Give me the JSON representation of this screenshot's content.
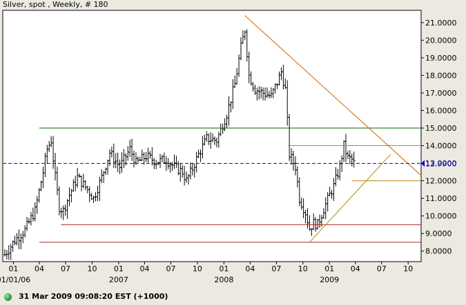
{
  "chart_data": {
    "type": "ohlc",
    "title": "Silver, spot , Weekly, # 180",
    "ylim": [
      7.4,
      21.7
    ],
    "y_ticks": [
      {
        "value": 8,
        "label": "8.0000"
      },
      {
        "value": 9,
        "label": "9.0000"
      },
      {
        "value": 10,
        "label": "10.0000"
      },
      {
        "value": 11,
        "label": "11.0000"
      },
      {
        "value": 12,
        "label": "12.0000"
      },
      {
        "value": 13,
        "label": "13.0000"
      },
      {
        "value": 14,
        "label": "14.0000"
      },
      {
        "value": 15,
        "label": "15.0000"
      },
      {
        "value": 16,
        "label": "16.0000"
      },
      {
        "value": 17,
        "label": "17.0000"
      },
      {
        "value": 18,
        "label": "18.0000"
      },
      {
        "value": 19,
        "label": "19.0000"
      },
      {
        "value": 20,
        "label": "20.0000"
      },
      {
        "value": 21,
        "label": "21.0000"
      }
    ],
    "x_start": "2005-11-25",
    "x_end": "2009-11-15",
    "x_ticks": [
      {
        "date": "2006-01-01",
        "label": "01"
      },
      {
        "date": "2006-04-01",
        "label": "04"
      },
      {
        "date": "2006-07-01",
        "label": "07"
      },
      {
        "date": "2006-10-01",
        "label": "10"
      },
      {
        "date": "2007-01-01",
        "label": "01"
      },
      {
        "date": "2007-04-01",
        "label": "04"
      },
      {
        "date": "2007-07-01",
        "label": "07"
      },
      {
        "date": "2007-10-01",
        "label": "10"
      },
      {
        "date": "2008-01-01",
        "label": "01"
      },
      {
        "date": "2008-04-01",
        "label": "04"
      },
      {
        "date": "2008-07-01",
        "label": "07"
      },
      {
        "date": "2008-10-01",
        "label": "10"
      },
      {
        "date": "2009-01-01",
        "label": "01"
      },
      {
        "date": "2009-04-01",
        "label": "04"
      },
      {
        "date": "2009-07-01",
        "label": "07"
      },
      {
        "date": "2009-10-01",
        "label": "10"
      }
    ],
    "year_labels": [
      {
        "date": "2006-01-01",
        "label": "01/01/06"
      },
      {
        "date": "2007-01-01",
        "label": "2007"
      },
      {
        "date": "2008-01-01",
        "label": "2008"
      },
      {
        "date": "2009-01-01",
        "label": "2009"
      }
    ],
    "last_price": {
      "value": 12.99,
      "label": "12.9900",
      "color": "#0000cc"
    },
    "price_anchors": [
      [
        "2005-12-02",
        7.8
      ],
      [
        "2006-01-06",
        8.6
      ],
      [
        "2006-02-10",
        9.2
      ],
      [
        "2006-03-17",
        10.3
      ],
      [
        "2006-04-14",
        12.5
      ],
      [
        "2006-04-28",
        13.8
      ],
      [
        "2006-05-12",
        14.3
      ],
      [
        "2006-05-26",
        12.2
      ],
      [
        "2006-06-09",
        10.5
      ],
      [
        "2006-06-23",
        10.3
      ],
      [
        "2006-07-14",
        11.2
      ],
      [
        "2006-08-11",
        12.2
      ],
      [
        "2006-09-15",
        11.5
      ],
      [
        "2006-10-06",
        11.0
      ],
      [
        "2006-11-03",
        12.2
      ],
      [
        "2006-12-01",
        13.6
      ],
      [
        "2007-01-05",
        12.8
      ],
      [
        "2007-02-09",
        13.8
      ],
      [
        "2007-03-02",
        13.0
      ],
      [
        "2007-04-06",
        13.4
      ],
      [
        "2007-05-11",
        13.1
      ],
      [
        "2007-06-15",
        13.2
      ],
      [
        "2007-07-13",
        12.8
      ],
      [
        "2007-08-10",
        12.5
      ],
      [
        "2007-08-24",
        12.0
      ],
      [
        "2007-09-14",
        12.7
      ],
      [
        "2007-10-05",
        13.5
      ],
      [
        "2007-11-02",
        14.4
      ],
      [
        "2007-12-07",
        14.3
      ],
      [
        "2008-01-11",
        15.8
      ],
      [
        "2008-02-08",
        17.5
      ],
      [
        "2008-02-29",
        19.6
      ],
      [
        "2008-03-14",
        20.6
      ],
      [
        "2008-03-28",
        18.0
      ],
      [
        "2008-04-18",
        17.2
      ],
      [
        "2008-05-16",
        17.0
      ],
      [
        "2008-06-13",
        16.8
      ],
      [
        "2008-07-04",
        17.6
      ],
      [
        "2008-07-18",
        18.2
      ],
      [
        "2008-08-01",
        17.2
      ],
      [
        "2008-08-15",
        13.5
      ],
      [
        "2008-09-05",
        12.8
      ],
      [
        "2008-09-19",
        11.0
      ],
      [
        "2008-10-10",
        10.2
      ],
      [
        "2008-10-24",
        9.3
      ],
      [
        "2008-11-07",
        9.6
      ],
      [
        "2008-11-21",
        9.5
      ],
      [
        "2008-12-12",
        10.4
      ],
      [
        "2009-01-02",
        11.2
      ],
      [
        "2009-01-16",
        11.7
      ],
      [
        "2009-02-06",
        12.8
      ],
      [
        "2009-02-20",
        14.0
      ],
      [
        "2009-03-06",
        13.3
      ],
      [
        "2009-03-20",
        13.2
      ],
      [
        "2009-03-27",
        13.0
      ]
    ],
    "horizontal_lines": [
      {
        "value": 15.0,
        "start": "2006-04-01",
        "end": "2009-11-15",
        "color": "#006400"
      },
      {
        "value": 14.0,
        "start": "2008-08-10",
        "end": "2009-11-15",
        "color": "#b8860b"
      },
      {
        "value": 12.0,
        "start": "2009-03-20",
        "end": "2009-11-15",
        "color": "#b8860b"
      },
      {
        "value": 9.5,
        "start": "2006-06-15",
        "end": "2009-11-15",
        "color": "#b22222"
      },
      {
        "value": 8.5,
        "start": "2006-04-01",
        "end": "2009-11-15",
        "color": "#b22222"
      }
    ],
    "trend_lines": [
      {
        "from": [
          "2008-03-14",
          21.4
        ],
        "to": [
          "2009-11-15",
          12.3
        ],
        "color": "#cc6600"
      },
      {
        "from": [
          "2008-10-24",
          8.5
        ],
        "to": [
          "2009-08-01",
          13.5
        ],
        "color": "#b8860b"
      }
    ]
  },
  "status": {
    "text": "31 Mar 2009 09:08:20  EST (+1000)"
  }
}
